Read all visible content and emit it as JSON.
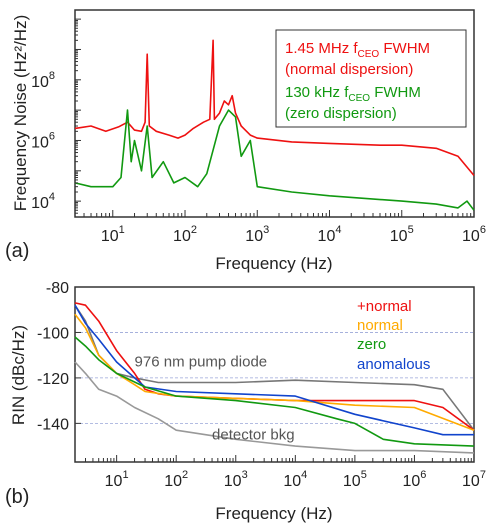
{
  "chart_data": [
    {
      "type": "line",
      "panel_label": "(a)",
      "xlabel": "Frequency (Hz)",
      "ylabel": "Frequency Noise (Hz²/Hz)",
      "xscale": "log",
      "yscale": "log",
      "xlim": [
        3,
        1000000
      ],
      "ylim": [
        3000,
        20000000000
      ],
      "xticks": [
        {
          "value": 10,
          "base": "10",
          "exp": "1"
        },
        {
          "value": 100,
          "base": "10",
          "exp": "2"
        },
        {
          "value": 1000,
          "base": "10",
          "exp": "3"
        },
        {
          "value": 10000,
          "base": "10",
          "exp": "4"
        },
        {
          "value": 100000,
          "base": "10",
          "exp": "5"
        },
        {
          "value": 1000000,
          "base": "10",
          "exp": "6"
        }
      ],
      "yticks": [
        {
          "value": 10000,
          "base": "10",
          "exp": "4"
        },
        {
          "value": 1000000,
          "base": "10",
          "exp": "6"
        },
        {
          "value": 100000000,
          "base": "10",
          "exp": "8"
        }
      ],
      "legend": {
        "placement": "top-right",
        "entries": [
          {
            "line1_pre": "1.45 MHz f",
            "line1_sub": "CEO",
            "line1_post": " FWHM",
            "line2": "(normal dispersion)",
            "color": "#ee1111"
          },
          {
            "line1_pre": "130 kHz f",
            "line1_sub": "CEO",
            "line1_post": " FWHM",
            "line2": "(zero dispersion)",
            "color": "#119911"
          }
        ]
      },
      "series": [
        {
          "color": "#ee1111",
          "points": [
            [
              3,
              2500000
            ],
            [
              5,
              3000000
            ],
            [
              8,
              2000000
            ],
            [
              12,
              2800000
            ],
            [
              16,
              4000000
            ],
            [
              20,
              2200000
            ],
            [
              25,
              2000000
            ],
            [
              28,
              4000000
            ],
            [
              30,
              700000000
            ],
            [
              32,
              3000000
            ],
            [
              40,
              2000000
            ],
            [
              60,
              1500000
            ],
            [
              80,
              1200000
            ],
            [
              100,
              1500000
            ],
            [
              130,
              2500000
            ],
            [
              180,
              4000000
            ],
            [
              220,
              5000000
            ],
            [
              245,
              2000000000
            ],
            [
              255,
              5000000
            ],
            [
              300,
              8000000
            ],
            [
              350,
              20000000
            ],
            [
              400,
              15000000
            ],
            [
              450,
              30000000
            ],
            [
              500,
              8000000
            ],
            [
              600,
              3000000
            ],
            [
              800,
              1500000
            ],
            [
              1000,
              1200000
            ],
            [
              3000,
              900000
            ],
            [
              10000,
              800000
            ],
            [
              50000,
              700000
            ],
            [
              100000,
              700000
            ],
            [
              300000,
              550000
            ],
            [
              600000,
              300000
            ],
            [
              1000000,
              70000
            ]
          ]
        },
        {
          "color": "#119911",
          "points": [
            [
              3,
              40000
            ],
            [
              5,
              30000
            ],
            [
              10,
              30000
            ],
            [
              13,
              60000
            ],
            [
              16,
              10000000
            ],
            [
              18,
              200000
            ],
            [
              20,
              1000000
            ],
            [
              25,
              100000
            ],
            [
              30,
              3000000
            ],
            [
              35,
              60000
            ],
            [
              50,
              200000
            ],
            [
              70,
              40000
            ],
            [
              100,
              60000
            ],
            [
              150,
              30000
            ],
            [
              200,
              80000
            ],
            [
              300,
              3000000
            ],
            [
              400,
              10000000
            ],
            [
              500,
              6000000
            ],
            [
              600,
              300000
            ],
            [
              800,
              1000000
            ],
            [
              1000,
              30000
            ],
            [
              3000,
              20000
            ],
            [
              10000,
              15000
            ],
            [
              100000,
              10000
            ],
            [
              300000,
              8000
            ],
            [
              600000,
              6000
            ],
            [
              800000,
              10000
            ],
            [
              1000000,
              5000
            ]
          ]
        }
      ]
    },
    {
      "type": "line",
      "panel_label": "(b)",
      "xlabel": "Frequency (Hz)",
      "ylabel": "RIN (dBc/Hz)",
      "xscale": "log",
      "xlim": [
        2,
        10000000
      ],
      "ylim": [
        -157,
        -80
      ],
      "xticks": [
        {
          "value": 10,
          "base": "10",
          "exp": "1"
        },
        {
          "value": 100,
          "base": "10",
          "exp": "2"
        },
        {
          "value": 1000,
          "base": "10",
          "exp": "3"
        },
        {
          "value": 10000,
          "base": "10",
          "exp": "4"
        },
        {
          "value": 100000,
          "base": "10",
          "exp": "5"
        },
        {
          "value": 1000000,
          "base": "10",
          "exp": "6"
        },
        {
          "value": 10000000,
          "base": "10",
          "exp": "7"
        }
      ],
      "yticks": [
        -80,
        -100,
        -120,
        -140
      ],
      "grid_lines": [
        -100,
        -120,
        -140
      ],
      "annotations": [
        {
          "text": "976 nm pump diode",
          "x": 20,
          "y": -115,
          "color": "#555555"
        },
        {
          "text": "detector bkg",
          "x": 400,
          "y": -147,
          "color": "#555555"
        }
      ],
      "legend": {
        "placement": "top-right",
        "entries": [
          {
            "label": "+normal",
            "color": "#ee1111"
          },
          {
            "label": "normal",
            "color": "#ffaa00"
          },
          {
            "label": "zero",
            "color": "#119911"
          },
          {
            "label": "anomalous",
            "color": "#1144cc"
          }
        ]
      },
      "series": [
        {
          "name": "976 nm pump diode",
          "color": "#777777",
          "points": [
            [
              2,
              -88
            ],
            [
              3,
              -95
            ],
            [
              5,
              -110
            ],
            [
              10,
              -118
            ],
            [
              20,
              -120
            ],
            [
              50,
              -122
            ],
            [
              100,
              -122
            ],
            [
              1000,
              -122
            ],
            [
              10000,
              -121
            ],
            [
              100000,
              -122
            ],
            [
              1000000,
              -123
            ],
            [
              3000000,
              -125
            ],
            [
              10000000,
              -143
            ]
          ]
        },
        {
          "name": "+normal",
          "color": "#ee1111",
          "points": [
            [
              2,
              -87
            ],
            [
              3,
              -88
            ],
            [
              5,
              -95
            ],
            [
              10,
              -108
            ],
            [
              20,
              -118
            ],
            [
              30,
              -125
            ],
            [
              50,
              -127
            ],
            [
              100,
              -128
            ],
            [
              1000,
              -129
            ],
            [
              10000,
              -130
            ],
            [
              100000,
              -130
            ],
            [
              1000000,
              -130
            ],
            [
              3000000,
              -133
            ],
            [
              10000000,
              -143
            ]
          ]
        },
        {
          "name": "normal",
          "color": "#ffaa00",
          "points": [
            [
              2,
              -92
            ],
            [
              3,
              -98
            ],
            [
              5,
              -110
            ],
            [
              10,
              -118
            ],
            [
              20,
              -123
            ],
            [
              30,
              -126
            ],
            [
              100,
              -128
            ],
            [
              1000,
              -129
            ],
            [
              10000,
              -130
            ],
            [
              100000,
              -132
            ],
            [
              1000000,
              -133
            ],
            [
              10000000,
              -143
            ]
          ]
        },
        {
          "name": "anomalous",
          "color": "#1144cc",
          "points": [
            [
              2,
              -88
            ],
            [
              3,
              -96
            ],
            [
              5,
              -103
            ],
            [
              10,
              -113
            ],
            [
              20,
              -120
            ],
            [
              30,
              -124
            ],
            [
              100,
              -126
            ],
            [
              1000,
              -127
            ],
            [
              10000,
              -128
            ],
            [
              100000,
              -136
            ],
            [
              1000000,
              -142
            ],
            [
              3000000,
              -145
            ],
            [
              10000000,
              -145
            ]
          ]
        },
        {
          "name": "zero",
          "color": "#119911",
          "points": [
            [
              2,
              -102
            ],
            [
              3,
              -106
            ],
            [
              5,
              -112
            ],
            [
              10,
              -118
            ],
            [
              30,
              -124
            ],
            [
              100,
              -128
            ],
            [
              1000,
              -130
            ],
            [
              10000,
              -133
            ],
            [
              50000,
              -138
            ],
            [
              100000,
              -140
            ],
            [
              300000,
              -147
            ],
            [
              1000000,
              -149
            ],
            [
              10000000,
              -150
            ]
          ]
        },
        {
          "name": "detector bkg",
          "color": "#999999",
          "points": [
            [
              2,
              -113
            ],
            [
              3,
              -118
            ],
            [
              5,
              -125
            ],
            [
              10,
              -128
            ],
            [
              20,
              -133
            ],
            [
              50,
              -138
            ],
            [
              100,
              -143
            ],
            [
              1000,
              -147
            ],
            [
              10000,
              -150
            ],
            [
              100000,
              -152
            ],
            [
              1000000,
              -152
            ],
            [
              10000000,
              -153
            ]
          ]
        }
      ]
    }
  ]
}
